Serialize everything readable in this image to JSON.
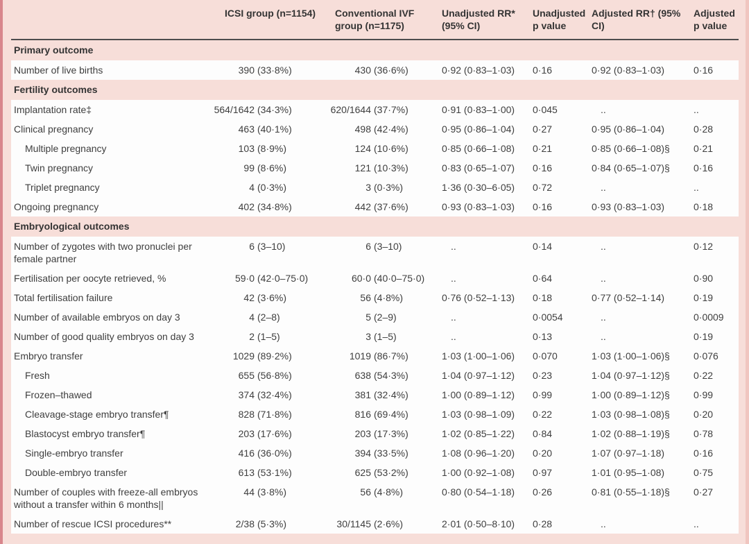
{
  "table": {
    "columns": [
      {
        "key": "label",
        "label": ""
      },
      {
        "key": "icsi",
        "label": "ICSI group (n=1154)"
      },
      {
        "key": "conventional",
        "label": "Conventional IVF group (n=1175)"
      },
      {
        "key": "unadjusted_rr",
        "label": "Unadjusted RR* (95% CI)"
      },
      {
        "key": "unadjusted_p",
        "label": "Unadjusted p value"
      },
      {
        "key": "adjusted_rr",
        "label": "Adjusted RR† (95% CI)"
      },
      {
        "key": "adjusted_p",
        "label": "Adjusted p value"
      }
    ],
    "rows": [
      {
        "type": "section",
        "label": "Primary outcome"
      },
      {
        "type": "data",
        "indent": false,
        "label": "Number of live births",
        "cells": [
          "390 (33·8%)",
          "430 (36·6%)",
          "0·92 (0·83–1·03)",
          "0·16",
          "0·92 (0·83–1·03)",
          "0·16"
        ]
      },
      {
        "type": "section",
        "label": "Fertility outcomes"
      },
      {
        "type": "data",
        "indent": false,
        "label": "Implantation rate‡",
        "cells": [
          "564/1642 (34·3%)",
          "620/1644 (37·7%)",
          "0·91 (0·83–1·00)",
          "0·045",
          "..",
          ".."
        ]
      },
      {
        "type": "data",
        "indent": false,
        "label": "Clinical pregnancy",
        "cells": [
          "463 (40·1%)",
          "498 (42·4%)",
          "0·95 (0·86–1·04)",
          "0·27",
          "0·95 (0·86–1·04)",
          "0·28"
        ]
      },
      {
        "type": "data",
        "indent": true,
        "label": "Multiple pregnancy",
        "cells": [
          "103 (8·9%)",
          "124 (10·6%)",
          "0·85 (0·66–1·08)",
          "0·21",
          "0·85 (0·66–1·08)§",
          "0·21"
        ]
      },
      {
        "type": "data",
        "indent": true,
        "label": "Twin pregnancy",
        "cells": [
          "99 (8·6%)",
          "121 (10·3%)",
          "0·83 (0·65–1·07)",
          "0·16",
          "0·84 (0·65–1·07)§",
          "0·16"
        ]
      },
      {
        "type": "data",
        "indent": true,
        "label": "Triplet pregnancy",
        "cells": [
          "4 (0·3%)",
          "3 (0·3%)",
          "1·36 (0·30–6·05)",
          "0·72",
          "..",
          ".."
        ]
      },
      {
        "type": "data",
        "indent": false,
        "label": "Ongoing pregnancy",
        "cells": [
          "402 (34·8%)",
          "442 (37·6%)",
          "0·93 (0·83–1·03)",
          "0·16",
          "0·93 (0·83–1·03)",
          "0·18"
        ]
      },
      {
        "type": "section",
        "label": "Embryological outcomes"
      },
      {
        "type": "data",
        "indent": false,
        "label": "Number of zygotes with two pronuclei per female partner",
        "cells": [
          "6 (3–10)",
          "6 (3–10)",
          "..",
          "0·14",
          "..",
          "0·12"
        ]
      },
      {
        "type": "data",
        "indent": false,
        "label": "Fertilisation per oocyte retrieved, %",
        "cells": [
          "59·0 (42·0–75·0)",
          "60·0 (40·0–75·0)",
          "..",
          "0·64",
          "..",
          "0·90"
        ]
      },
      {
        "type": "data",
        "indent": false,
        "label": "Total fertilisation failure",
        "cells": [
          "42 (3·6%)",
          "56 (4·8%)",
          "0·76 (0·52–1·13)",
          "0·18",
          "0·77 (0·52–1·14)",
          "0·19"
        ]
      },
      {
        "type": "data",
        "indent": false,
        "label": "Number of available embryos on day 3",
        "cells": [
          "4 (2–8)",
          "5 (2–9)",
          "..",
          "0·0054",
          "..",
          "0·0009"
        ]
      },
      {
        "type": "data",
        "indent": false,
        "label": "Number of good quality embryos on day 3",
        "cells": [
          "2 (1–5)",
          "3 (1–5)",
          "..",
          "0·13",
          "..",
          "0·19"
        ]
      },
      {
        "type": "data",
        "indent": false,
        "label": "Embryo transfer",
        "cells": [
          "1029 (89·2%)",
          "1019 (86·7%)",
          "1·03 (1·00–1·06)",
          "0·070",
          "1·03 (1·00–1·06)§",
          "0·076"
        ]
      },
      {
        "type": "data",
        "indent": true,
        "label": "Fresh",
        "cells": [
          "655 (56·8%)",
          "638 (54·3%)",
          "1·04 (0·97–1·12)",
          "0·23",
          "1·04 (0·97–1·12)§",
          "0·22"
        ]
      },
      {
        "type": "data",
        "indent": true,
        "label": "Frozen–thawed",
        "cells": [
          "374 (32·4%)",
          "381 (32·4%)",
          "1·00 (0·89–1·12)",
          "0·99",
          "1·00 (0·89–1·12)§",
          "0·99"
        ]
      },
      {
        "type": "data",
        "indent": true,
        "label": "Cleavage-stage embryo transfer¶",
        "cells": [
          "828 (71·8%)",
          "816 (69·4%)",
          "1·03 (0·98–1·09)",
          "0·22",
          "1·03 (0·98–1·08)§",
          "0·20"
        ]
      },
      {
        "type": "data",
        "indent": true,
        "label": "Blastocyst embryo transfer¶",
        "cells": [
          "203 (17·6%)",
          "203 (17·3%)",
          "1·02 (0·85–1·22)",
          "0·84",
          "1·02 (0·88–1·19)§",
          "0·78"
        ]
      },
      {
        "type": "data",
        "indent": true,
        "label": "Single-embryo transfer",
        "cells": [
          "416 (36·0%)",
          "394 (33·5%)",
          "1·08 (0·96–1·20)",
          "0·20",
          "1·07 (0·97–1·18)",
          "0·16"
        ]
      },
      {
        "type": "data",
        "indent": true,
        "label": "Double-embryo transfer",
        "cells": [
          "613 (53·1%)",
          "625 (53·2%)",
          "1·00 (0·92–1·08)",
          "0·97",
          "1·01 (0·95–1·08)",
          "0·75"
        ]
      },
      {
        "type": "data",
        "indent": false,
        "label": "Number of couples with freeze-all embryos without a transfer within 6 months||",
        "cells": [
          "44 (3·8%)",
          "56 (4·8%)",
          "0·80 (0·54–1·18)",
          "0·26",
          "0·81 (0·55–1·18)§",
          "0·27"
        ]
      },
      {
        "type": "data",
        "indent": false,
        "label": "Number of rescue ICSI procedures**",
        "cells": [
          "2/38 (5·3%)",
          "30/1145 (2·6%)",
          "2·01 (0·50–8·10)",
          "0·28",
          "..",
          ".."
        ]
      }
    ],
    "colors": {
      "frame_background": "#f7ded9",
      "row_background": "#fdfdfd",
      "left_edge": "#d8868c",
      "right_edge": "#f0c6c0",
      "header_rule": "#4d4d4d",
      "text": "#3e3e3e"
    },
    "missing_value_glyph": ".."
  }
}
